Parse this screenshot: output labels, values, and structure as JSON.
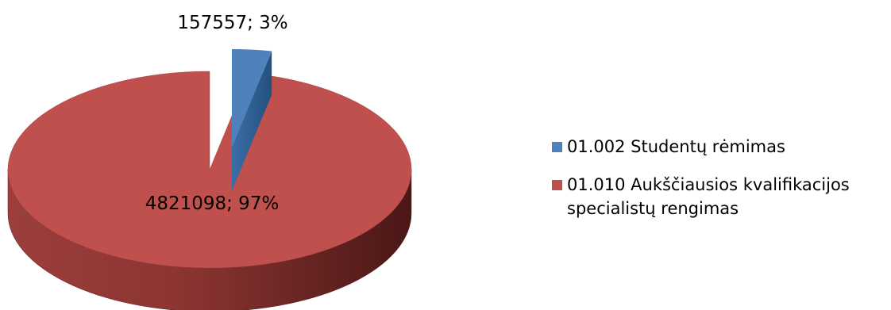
{
  "chart_data": {
    "type": "pie",
    "title": "",
    "slices": [
      {
        "name": "01.002 Studentų rėmimas",
        "value": 157557,
        "percent": 3,
        "label": "157557; 3%"
      },
      {
        "name": "01.010 Aukščiausios kvalifikacijos specialistų rengimas",
        "value": 4821098,
        "percent": 97,
        "label": "4821098; 97%"
      }
    ],
    "legend": {
      "placement": "right",
      "entries": [
        {
          "lines": [
            "01.002 Studentų rėmimas"
          ]
        },
        {
          "lines": [
            "01.010 Aukščiausios kvalifikacijos",
            "specialistų rengimas"
          ]
        }
      ]
    }
  },
  "colors": {
    "slice_1": "#4f81bd",
    "slice_1_dark": "#2f5f95",
    "slice_2": "#c0504d",
    "slice_2_dark": "#7a2a28"
  }
}
